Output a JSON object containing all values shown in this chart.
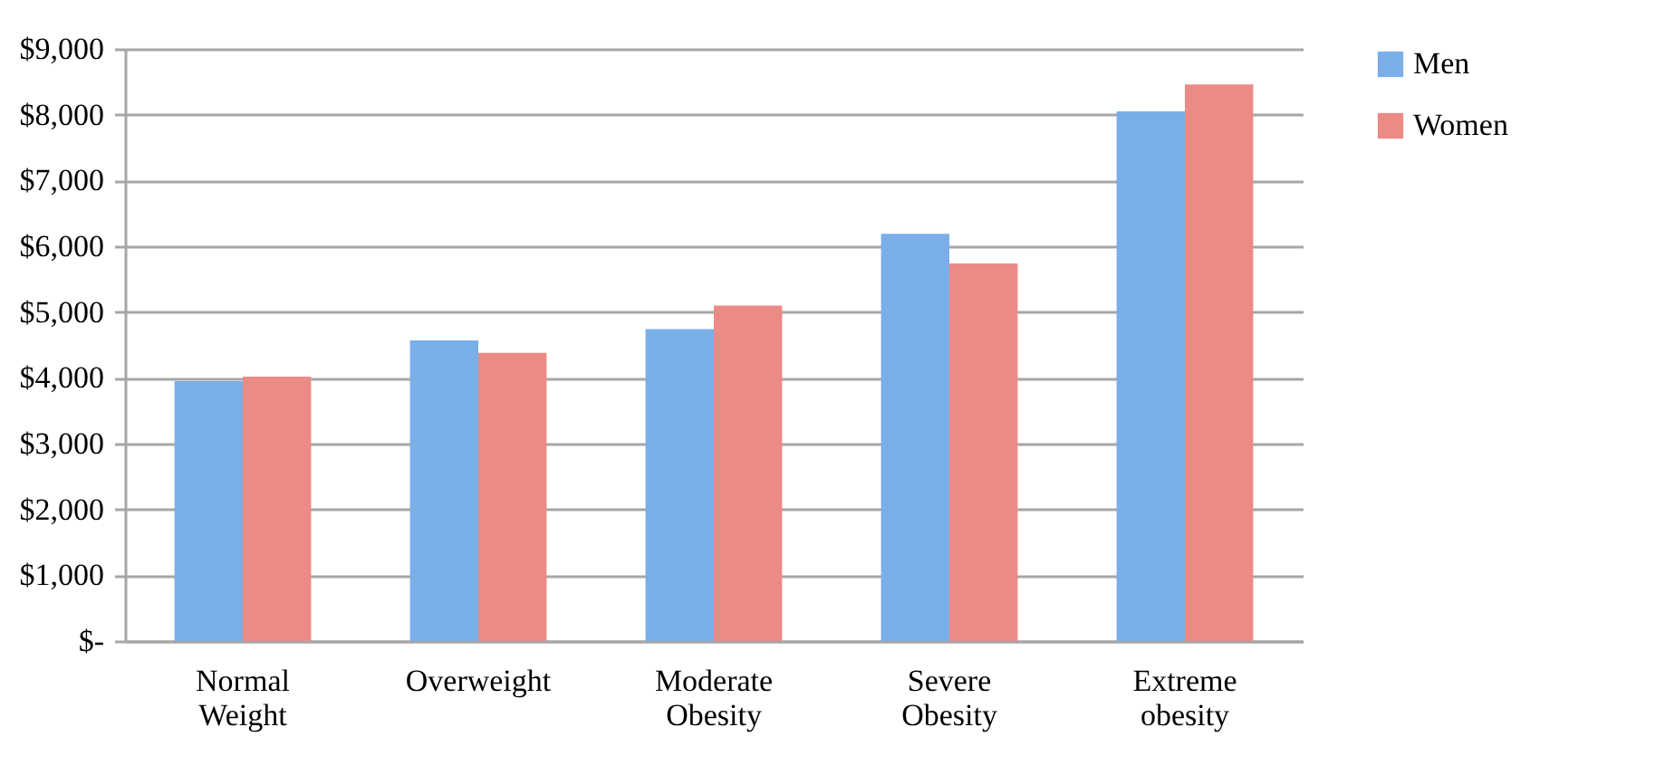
{
  "chart_data": {
    "type": "bar",
    "categories": [
      "Normal Weight",
      "Overweight",
      "Moderate Obesity",
      "Severe Obesity",
      "Extreme obesity"
    ],
    "series": [
      {
        "name": "Men",
        "color": "#7aaee9",
        "values": [
          3950,
          4570,
          4740,
          6190,
          8050
        ]
      },
      {
        "name": "Women",
        "color": "#ec8a85",
        "values": [
          4020,
          4380,
          5100,
          5740,
          8460
        ]
      }
    ],
    "ylim": [
      0,
      9000
    ],
    "yticks": [
      {
        "value": 0,
        "label": "$-"
      },
      {
        "value": 1000,
        "label": "$1,000"
      },
      {
        "value": 2000,
        "label": "$2,000"
      },
      {
        "value": 3000,
        "label": "$3,000"
      },
      {
        "value": 4000,
        "label": "$4,000"
      },
      {
        "value": 5000,
        "label": "$5,000"
      },
      {
        "value": 6000,
        "label": "$6,000"
      },
      {
        "value": 7000,
        "label": "$7,000"
      },
      {
        "value": 8000,
        "label": "$8,000"
      },
      {
        "value": 9000,
        "label": "$9,000"
      }
    ],
    "grid": "y",
    "legend": "right"
  }
}
